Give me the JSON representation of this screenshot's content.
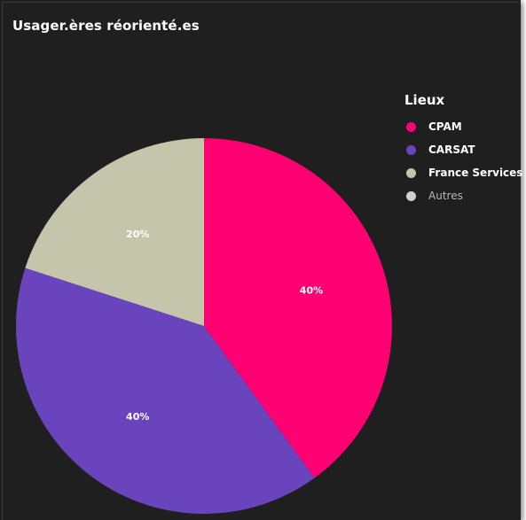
{
  "chart_data": {
    "type": "pie",
    "title": "Usager.ères réorienté.es",
    "legend_title": "Lieux",
    "legend_position": "top-right",
    "slices": [
      {
        "name": "CPAM",
        "value": 40,
        "label": "40%",
        "color": "#ff0072"
      },
      {
        "name": "CARSAT",
        "value": 40,
        "label": "40%",
        "color": "#6a44bd"
      },
      {
        "name": "France Services",
        "value": 20,
        "label": "20%",
        "color": "#c5c5ac"
      },
      {
        "name": "Autres",
        "value": 0,
        "label": "",
        "color": "#d0d0d0"
      }
    ]
  }
}
